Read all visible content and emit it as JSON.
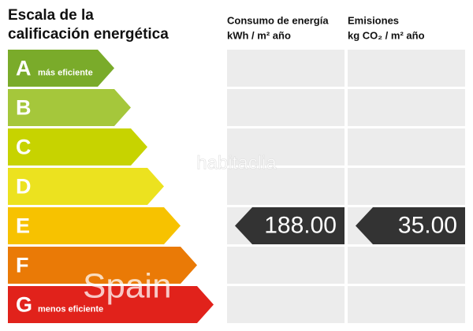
{
  "title": [
    "Escala de la",
    "calificación energética"
  ],
  "columns": [
    {
      "title": "Consumo de energía",
      "unit": "kWh / m² año"
    },
    {
      "title": "Emisiones",
      "unit": "kg CO₂ / m² año"
    }
  ],
  "classes": [
    {
      "letter": "A",
      "note": "más eficiente",
      "color": "#7aab2a"
    },
    {
      "letter": "B",
      "color": "#a5c73b"
    },
    {
      "letter": "C",
      "color": "#c7d300"
    },
    {
      "letter": "D",
      "color": "#ece21f"
    },
    {
      "letter": "E",
      "color": "#f7c200"
    },
    {
      "letter": "F",
      "color": "#ea7a06"
    },
    {
      "letter": "G",
      "note": "menos eficiente",
      "color": "#e1221b"
    }
  ],
  "ratings": [
    {
      "class": "E",
      "value": "188.00"
    },
    {
      "class": "E",
      "value": "35.00"
    }
  ],
  "watermarks": [
    "habitaclia",
    "Spain"
  ]
}
